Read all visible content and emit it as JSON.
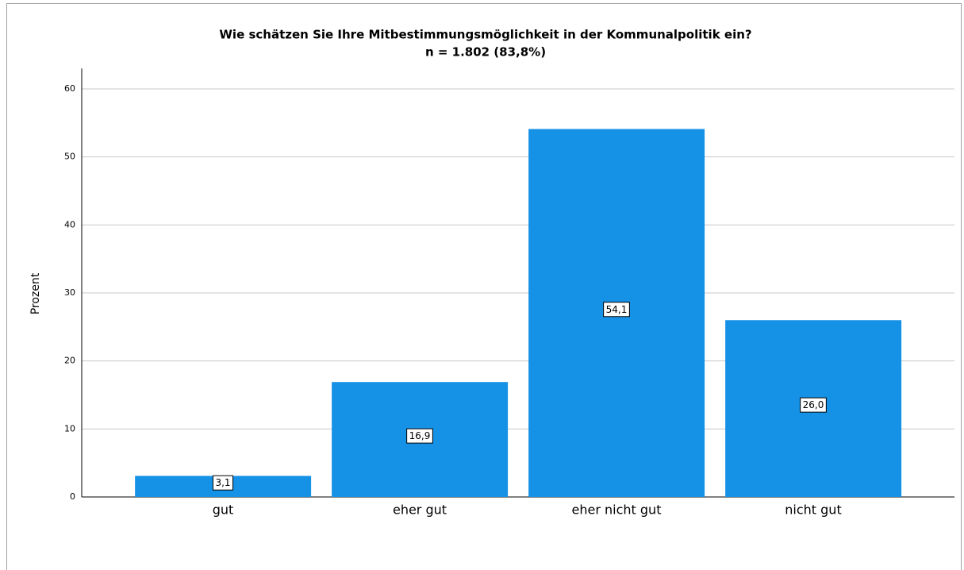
{
  "chart_data": {
    "type": "bar",
    "title": [
      "Wie schätzen Sie Ihre Mitbestimmungsmöglichkeit in der Kommunalpolitik ein?",
      "n = 1.802 (83,8%)"
    ],
    "ylabel": "Prozent",
    "categories": [
      "gut",
      "eher gut",
      "eher nicht gut",
      "nicht gut"
    ],
    "values": [
      3.1,
      16.9,
      54.1,
      26.0
    ],
    "value_labels": [
      "3,1",
      "16,9",
      "54,1",
      "26,0"
    ],
    "color": "#1591e6",
    "ylim": [
      0,
      63
    ],
    "yticks": [
      0,
      10,
      20,
      30,
      40,
      50,
      60
    ],
    "grid": true
  }
}
